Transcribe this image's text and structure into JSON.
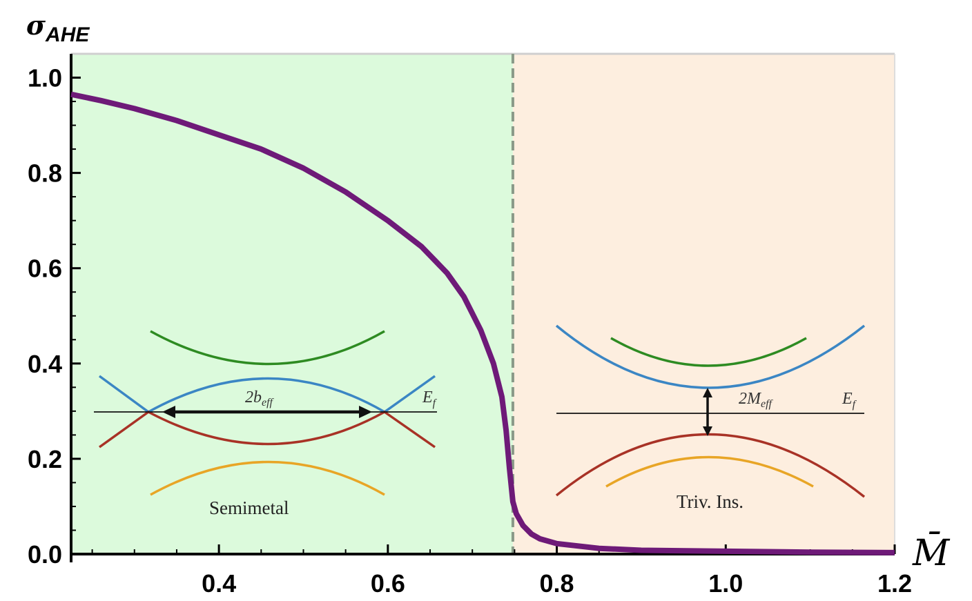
{
  "chart_data": {
    "type": "line",
    "ylabel_symbol": "σ",
    "ylabel_sub": "AHE",
    "xlabel": "M̄",
    "xlim": [
      0.225,
      1.2
    ],
    "ylim": [
      0.0,
      1.05
    ],
    "x_ticks": [
      "0.4",
      "0.6",
      "0.8",
      "1.0",
      "1.2"
    ],
    "x_tick_values": [
      0.4,
      0.6,
      0.8,
      1.0,
      1.2
    ],
    "y_ticks": [
      "0.0",
      "0.2",
      "0.4",
      "0.6",
      "0.8",
      "1.0"
    ],
    "y_tick_values": [
      0.0,
      0.2,
      0.4,
      0.6,
      0.8,
      1.0
    ],
    "phase_boundary": 0.748,
    "regions": [
      {
        "name": "Semimetal",
        "from": 0.225,
        "to": 0.748,
        "color": "#dcfadc"
      },
      {
        "name": "Triv. Ins.",
        "from": 0.748,
        "to": 1.2,
        "color": "#fdeedf"
      }
    ],
    "series": [
      {
        "name": "sigma_AHE",
        "color": "#6e1a78",
        "x": [
          0.225,
          0.26,
          0.3,
          0.35,
          0.4,
          0.45,
          0.5,
          0.55,
          0.6,
          0.64,
          0.67,
          0.69,
          0.71,
          0.725,
          0.735,
          0.74,
          0.744,
          0.748,
          0.752,
          0.76,
          0.77,
          0.78,
          0.8,
          0.85,
          0.9,
          1.0,
          1.1,
          1.2
        ],
        "y": [
          0.965,
          0.952,
          0.935,
          0.91,
          0.88,
          0.85,
          0.81,
          0.76,
          0.7,
          0.645,
          0.59,
          0.54,
          0.47,
          0.4,
          0.33,
          0.26,
          0.18,
          0.11,
          0.085,
          0.06,
          0.042,
          0.032,
          0.022,
          0.012,
          0.008,
          0.006,
          0.004,
          0.003
        ]
      }
    ]
  },
  "insets": {
    "semimetal": {
      "label": "Semimetal",
      "gap_label": "2b",
      "gap_sub": "eff",
      "fermi_label": "E",
      "fermi_sub": "f"
    },
    "insulator": {
      "label": "Triv. Ins.",
      "gap_label": "2M",
      "gap_sub": "eff",
      "fermi_label": "E",
      "fermi_sub": "f"
    }
  }
}
